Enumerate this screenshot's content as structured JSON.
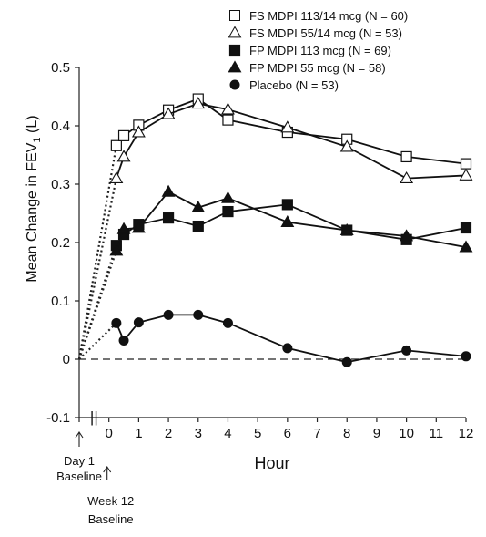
{
  "chart_data": {
    "type": "line",
    "ylabel": "Mean Change in FEV",
    "ylabel_sub": "1",
    "ylabel_unit": "(L)",
    "xlabel": "Hour",
    "ylim": [
      -0.1,
      0.5
    ],
    "xlim": [
      -1,
      12
    ],
    "yticks": [
      "0.5",
      "0.4",
      "0.3",
      "0.2",
      "0.1",
      "0",
      "-0.1"
    ],
    "ytick_values": [
      0.5,
      0.4,
      0.3,
      0.2,
      0.1,
      0,
      -0.1
    ],
    "xticks": [
      "0",
      "1",
      "2",
      "3",
      "4",
      "5",
      "6",
      "7",
      "8",
      "9",
      "10",
      "11",
      "12"
    ],
    "xtick_values": [
      0,
      1,
      2,
      3,
      4,
      5,
      6,
      7,
      8,
      9,
      10,
      11,
      12
    ],
    "reference_line": 0,
    "axis_break_marker": "||",
    "baseline_labels": {
      "day1": [
        "Day 1",
        "Baseline"
      ],
      "week12": [
        "Week 12",
        "Baseline"
      ]
    },
    "legend_position": "top-right",
    "series": [
      {
        "name": "FS MDPI 113/14 mcg (N = 60)",
        "marker": "square-open",
        "baseline": {
          "x": -1,
          "y": 0
        },
        "x": [
          0.25,
          0.5,
          1,
          2,
          3,
          4,
          6,
          8,
          10,
          12
        ],
        "values": [
          0.366,
          0.383,
          0.401,
          0.427,
          0.446,
          0.41,
          0.389,
          0.377,
          0.347,
          0.335
        ]
      },
      {
        "name": "FS MDPI 55/14 mcg (N = 53)",
        "marker": "triangle-open",
        "baseline": {
          "x": -1,
          "y": 0
        },
        "x": [
          0.25,
          0.5,
          1,
          2,
          3,
          4,
          6,
          8,
          10,
          12
        ],
        "values": [
          0.31,
          0.347,
          0.389,
          0.42,
          0.438,
          0.428,
          0.397,
          0.364,
          0.31,
          0.315
        ]
      },
      {
        "name": "FP MDPI 113 mcg (N = 69)",
        "marker": "square-filled",
        "baseline": {
          "x": -1,
          "y": 0
        },
        "x": [
          0.25,
          0.5,
          1,
          2,
          3,
          4,
          6,
          8,
          10,
          12
        ],
        "values": [
          0.195,
          0.214,
          0.231,
          0.242,
          0.228,
          0.253,
          0.265,
          0.221,
          0.205,
          0.225
        ]
      },
      {
        "name": "FP MDPI 55 mcg (N = 58)",
        "marker": "triangle-filled",
        "baseline": {
          "x": -1,
          "y": 0
        },
        "x": [
          0.25,
          0.5,
          1,
          2,
          3,
          4,
          6,
          8,
          10,
          12
        ],
        "values": [
          0.186,
          0.223,
          0.225,
          0.287,
          0.26,
          0.276,
          0.235,
          0.221,
          0.211,
          0.192
        ]
      },
      {
        "name": "Placebo (N = 53)",
        "marker": "circle-filled",
        "baseline": {
          "x": -1,
          "y": 0
        },
        "x": [
          0.25,
          0.5,
          1,
          2,
          3,
          4,
          6,
          8,
          10,
          12
        ],
        "values": [
          0.062,
          0.032,
          0.063,
          0.076,
          0.076,
          0.062,
          0.019,
          -0.005,
          0.015,
          0.005
        ]
      }
    ]
  }
}
